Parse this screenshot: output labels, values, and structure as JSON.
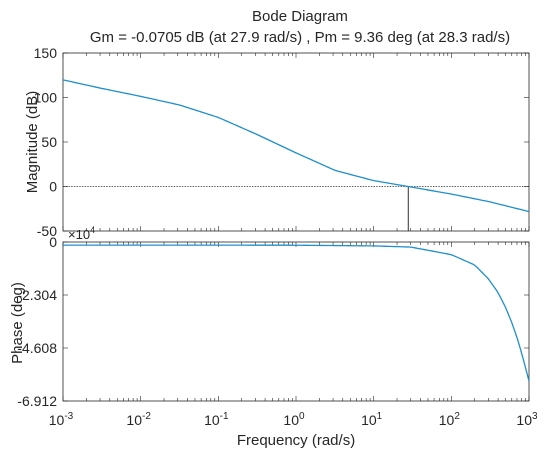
{
  "chart_data": [
    {
      "type": "line",
      "panel": "magnitude",
      "title": "Bode Diagram",
      "subtitle": "Gm = -0.0705 dB (at 27.9 rad/s) ,  Pm = 9.36 deg (at 28.3 rad/s)",
      "ylabel": "Magnitude (dB)",
      "ylim": [
        -50,
        150
      ],
      "yticks": [
        "150",
        "100",
        "50",
        "0",
        "-50"
      ],
      "xscale": "log",
      "xlim": [
        0.001,
        1000
      ],
      "grid": false,
      "x": [
        0.001,
        0.00316,
        0.01,
        0.0316,
        0.1,
        0.316,
        1,
        3.16,
        10,
        27.9,
        100,
        316,
        1000
      ],
      "values": [
        119.8,
        110.2,
        101.3,
        91.6,
        77.6,
        58.4,
        37.8,
        18.2,
        6.6,
        0,
        -8.5,
        -17.3,
        -28.2
      ],
      "series_color": "#1f8fcb",
      "marker_color": "#303030"
    },
    {
      "type": "line",
      "panel": "phase",
      "ylabel": "Phase (deg)",
      "xlabel": "Frequency  (rad/s)",
      "ylim": [
        -6.912,
        0
      ],
      "yticks": [
        "0",
        "-2.304",
        "-4.608",
        "-6.912"
      ],
      "exponent_label": "×10",
      "exponent": "4",
      "xscale": "log",
      "xlim": [
        0.001,
        1000
      ],
      "xticks": [
        {
          "base": "10",
          "exp": "-3"
        },
        {
          "base": "10",
          "exp": "-2"
        },
        {
          "base": "10",
          "exp": "-1"
        },
        {
          "base": "10",
          "exp": "0"
        },
        {
          "base": "10",
          "exp": "1"
        },
        {
          "base": "10",
          "exp": "2"
        },
        {
          "base": "10",
          "exp": "3"
        }
      ],
      "grid": false,
      "x": [
        0.001,
        0.01,
        0.1,
        1,
        10,
        30,
        100,
        200,
        300,
        400,
        500,
        600,
        700,
        800,
        900,
        1000
      ],
      "values": [
        -0.135,
        -0.135,
        -0.136,
        -0.14,
        -0.17,
        -0.22,
        -0.55,
        -1.0,
        -1.6,
        -2.2,
        -2.85,
        -3.5,
        -4.15,
        -4.8,
        -5.45,
        -6.05
      ],
      "series_color": "#1f8fcb"
    }
  ]
}
